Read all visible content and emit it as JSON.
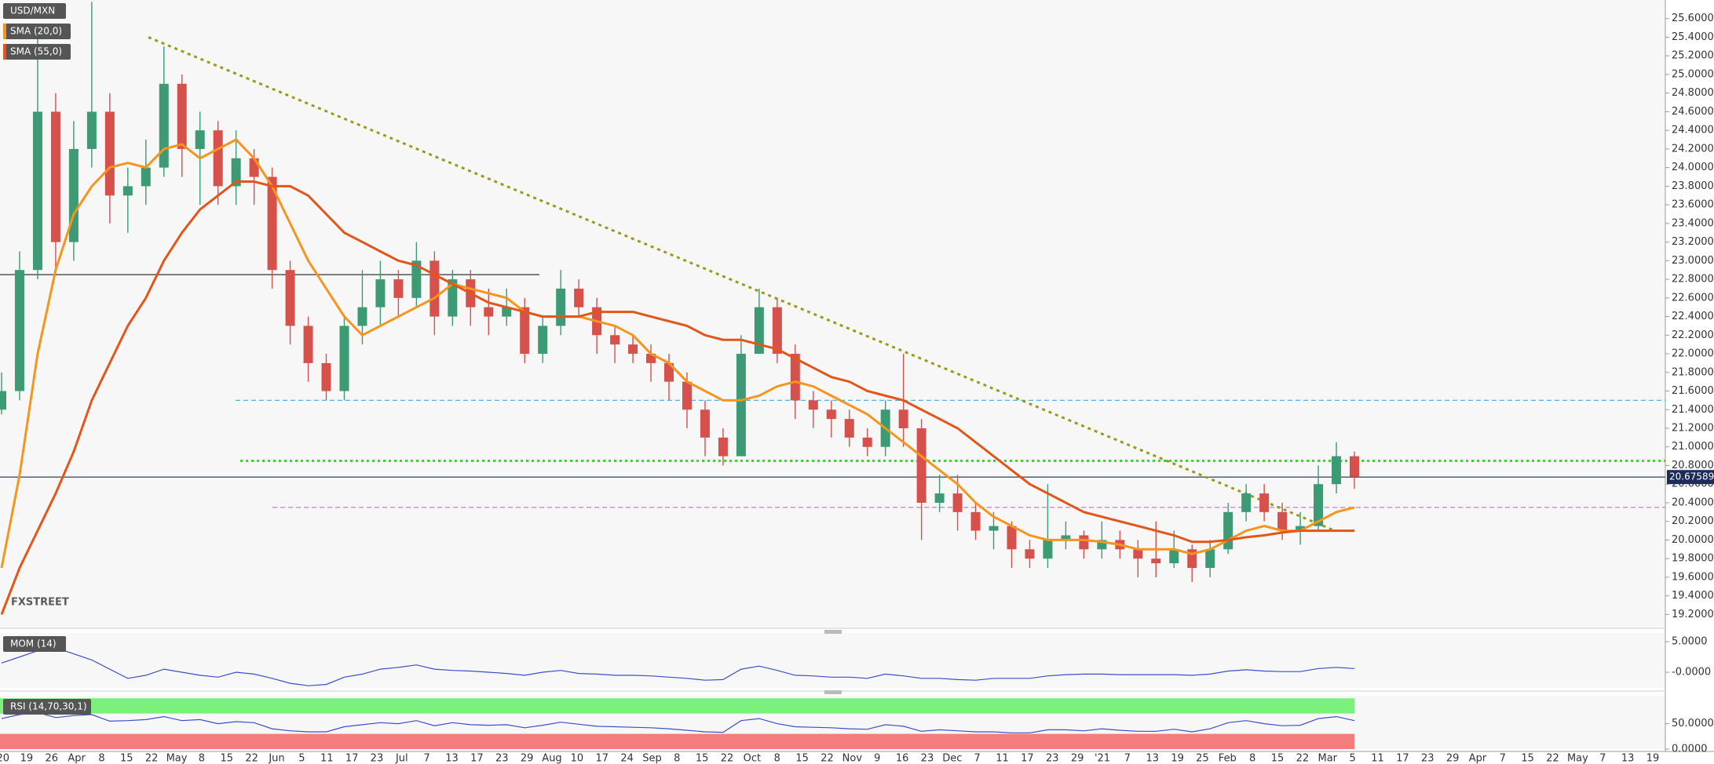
{
  "chart_data": [
    {
      "type": "candlestick",
      "title": "USD/MXN",
      "up_color": "#3c9a74",
      "down_color": "#d6504c",
      "open": [
        21.4,
        21.6,
        22.9,
        24.6,
        23.2,
        24.2,
        24.6,
        23.7,
        23.8,
        24.0,
        24.9,
        24.2,
        24.4,
        23.8,
        24.1,
        23.9,
        22.9,
        22.3,
        21.9,
        21.6,
        22.3,
        22.5,
        22.8,
        22.6,
        23.0,
        22.4,
        22.8,
        22.5,
        22.4,
        22.5,
        22.0,
        22.3,
        22.7,
        22.5,
        22.2,
        22.1,
        22.0,
        21.9,
        21.7,
        21.4,
        21.1,
        20.9,
        22.0,
        22.5,
        22.0,
        21.5,
        21.4,
        21.3,
        21.1,
        21.0,
        21.4,
        21.2,
        20.4,
        20.5,
        20.3,
        20.1,
        20.15,
        19.9,
        19.8,
        20.0,
        20.05,
        19.9,
        20.0,
        19.9,
        19.8,
        19.75,
        19.9,
        19.7,
        19.9,
        20.3,
        20.5,
        20.3,
        20.1,
        20.15,
        20.6,
        20.9
      ],
      "high": [
        21.8,
        23.1,
        25.5,
        24.8,
        24.5,
        25.78,
        24.8,
        24.0,
        24.3,
        25.3,
        25.0,
        24.6,
        24.5,
        24.4,
        24.2,
        24.0,
        23.0,
        22.4,
        22.0,
        22.4,
        22.9,
        23.0,
        22.9,
        23.2,
        23.1,
        22.9,
        22.9,
        22.7,
        22.7,
        22.6,
        22.4,
        22.9,
        22.8,
        22.6,
        22.3,
        22.2,
        22.1,
        22.0,
        21.8,
        21.5,
        21.2,
        22.2,
        22.7,
        22.6,
        22.1,
        21.6,
        21.5,
        21.4,
        21.2,
        21.5,
        22.0,
        21.3,
        20.7,
        20.7,
        20.4,
        20.3,
        20.2,
        20.0,
        20.6,
        20.2,
        20.1,
        20.2,
        20.1,
        20.0,
        20.2,
        20.1,
        19.95,
        20.0,
        20.4,
        20.6,
        20.6,
        20.4,
        20.3,
        20.8,
        21.05,
        20.95
      ],
      "low": [
        21.35,
        21.5,
        22.8,
        22.9,
        23.0,
        24.0,
        23.4,
        23.3,
        23.6,
        23.9,
        23.9,
        23.6,
        23.6,
        23.6,
        23.6,
        22.7,
        22.1,
        21.7,
        21.5,
        21.5,
        22.1,
        22.3,
        22.4,
        22.5,
        22.2,
        22.3,
        22.3,
        22.2,
        22.3,
        21.9,
        21.9,
        22.2,
        22.4,
        22.0,
        21.9,
        21.9,
        21.7,
        21.5,
        21.2,
        20.9,
        20.8,
        20.9,
        22.0,
        21.9,
        21.3,
        21.2,
        21.1,
        21.0,
        20.9,
        20.9,
        21.0,
        20.0,
        20.3,
        20.1,
        20.0,
        19.9,
        19.7,
        19.7,
        19.7,
        19.9,
        19.8,
        19.8,
        19.8,
        19.6,
        19.6,
        19.7,
        19.55,
        19.6,
        19.85,
        20.2,
        20.2,
        20.0,
        19.95,
        20.1,
        20.5,
        20.55
      ],
      "close": [
        21.6,
        22.9,
        24.6,
        23.2,
        24.2,
        24.6,
        23.7,
        23.8,
        24.0,
        24.9,
        24.2,
        24.4,
        23.8,
        24.1,
        23.9,
        22.9,
        22.3,
        21.9,
        21.6,
        22.3,
        22.5,
        22.8,
        22.6,
        23.0,
        22.4,
        22.8,
        22.5,
        22.4,
        22.5,
        22.0,
        22.3,
        22.7,
        22.5,
        22.2,
        22.1,
        22.0,
        21.9,
        21.7,
        21.4,
        21.1,
        20.9,
        22.0,
        22.5,
        22.0,
        21.5,
        21.4,
        21.3,
        21.1,
        21.0,
        21.4,
        21.2,
        20.4,
        20.5,
        20.3,
        20.1,
        20.15,
        19.9,
        19.8,
        20.0,
        20.05,
        19.9,
        20.0,
        19.9,
        19.8,
        19.75,
        19.9,
        19.7,
        19.9,
        20.3,
        20.5,
        20.3,
        20.1,
        20.15,
        20.6,
        20.9,
        20.68
      ],
      "series": [
        {
          "name": "SMA (20,0)",
          "color": "#f7941d",
          "values": [
            19.7,
            20.7,
            22.0,
            22.9,
            23.5,
            23.8,
            24.0,
            24.05,
            24.0,
            24.2,
            24.25,
            24.1,
            24.2,
            24.3,
            24.1,
            23.8,
            23.4,
            23.0,
            22.7,
            22.4,
            22.2,
            22.3,
            22.4,
            22.5,
            22.6,
            22.75,
            22.7,
            22.65,
            22.6,
            22.45,
            22.4,
            22.4,
            22.4,
            22.35,
            22.3,
            22.2,
            22.0,
            21.9,
            21.7,
            21.6,
            21.5,
            21.5,
            21.55,
            21.65,
            21.7,
            21.65,
            21.55,
            21.45,
            21.35,
            21.2,
            21.05,
            20.9,
            20.75,
            20.6,
            20.4,
            20.25,
            20.15,
            20.05,
            20.0,
            20.0,
            20.0,
            19.98,
            19.95,
            19.9,
            19.9,
            19.9,
            19.85,
            19.9,
            20.0,
            20.1,
            20.15,
            20.1,
            20.1,
            20.2,
            20.3,
            20.35
          ]
        },
        {
          "name": "SMA (55,0)",
          "color": "#e2561a",
          "values": [
            19.2,
            19.7,
            20.1,
            20.5,
            20.95,
            21.5,
            21.9,
            22.3,
            22.6,
            23.0,
            23.3,
            23.55,
            23.7,
            23.85,
            23.85,
            23.8,
            23.8,
            23.7,
            23.5,
            23.3,
            23.2,
            23.1,
            23.0,
            22.95,
            22.85,
            22.75,
            22.65,
            22.55,
            22.5,
            22.45,
            22.4,
            22.4,
            22.4,
            22.45,
            22.45,
            22.45,
            22.4,
            22.35,
            22.3,
            22.2,
            22.15,
            22.15,
            22.1,
            22.05,
            21.95,
            21.85,
            21.75,
            21.7,
            21.6,
            21.55,
            21.5,
            21.4,
            21.3,
            21.2,
            21.05,
            20.9,
            20.75,
            20.6,
            20.5,
            20.4,
            20.3,
            20.25,
            20.2,
            20.15,
            20.1,
            20.05,
            19.98,
            19.98,
            20.0,
            20.03,
            20.05,
            20.08,
            20.1,
            20.1,
            20.1,
            20.1
          ]
        }
      ],
      "trendline": {
        "values": [
          25.4,
          20.1
        ],
        "color": "#9a9a1a"
      },
      "levels": [
        {
          "value": 22.85,
          "color": "#333333",
          "style": "solid"
        },
        {
          "value": 21.5,
          "color": "#5aaee0",
          "style": "dashed"
        },
        {
          "value": 20.85,
          "color": "#33dd22",
          "style": "dotted"
        },
        {
          "value": 20.35,
          "color": "#e070d0",
          "style": "dashed"
        }
      ],
      "last": 20.67589,
      "last_color": "#1c2a5c",
      "watermark": "FXSTREET",
      "ylim": [
        19.06,
        25.8
      ],
      "yticks": [
        {
          "value": 19.2,
          "label": "19.2000"
        },
        {
          "value": 19.4,
          "label": "19.4000"
        },
        {
          "value": 19.6,
          "label": "19.6000"
        },
        {
          "value": 19.8,
          "label": "19.8000"
        },
        {
          "value": 20.0,
          "label": "20.0000"
        },
        {
          "value": 20.2,
          "label": "20.2000"
        },
        {
          "value": 20.4,
          "label": "20.4000"
        },
        {
          "value": 20.6,
          "label": "20.6000"
        },
        {
          "value": 20.8,
          "label": "20.8000"
        },
        {
          "value": 21.0,
          "label": "21.0000"
        },
        {
          "value": 21.2,
          "label": "21.2000"
        },
        {
          "value": 21.4,
          "label": "21.4000"
        },
        {
          "value": 21.6,
          "label": "21.6000"
        },
        {
          "value": 21.8,
          "label": "21.8000"
        },
        {
          "value": 22.0,
          "label": "22.0000"
        },
        {
          "value": 22.2,
          "label": "22.2000"
        },
        {
          "value": 22.4,
          "label": "22.4000"
        },
        {
          "value": 22.6,
          "label": "22.6000"
        },
        {
          "value": 22.8,
          "label": "22.8000"
        },
        {
          "value": 23.0,
          "label": "23.0000"
        },
        {
          "value": 23.2,
          "label": "23.2000"
        },
        {
          "value": 23.4,
          "label": "23.4000"
        },
        {
          "value": 23.6,
          "label": "23.6000"
        },
        {
          "value": 23.8,
          "label": "23.8000"
        },
        {
          "value": 24.0,
          "label": "24.0000"
        },
        {
          "value": 24.2,
          "label": "24.2000"
        },
        {
          "value": 24.4,
          "label": "24.4000"
        },
        {
          "value": 24.6,
          "label": "24.6000"
        },
        {
          "value": 24.8,
          "label": "24.8000"
        },
        {
          "value": 25.0,
          "label": "25.0000"
        },
        {
          "value": 25.2,
          "label": "25.2000"
        },
        {
          "value": 25.4,
          "label": "25.4000"
        },
        {
          "value": 25.6,
          "label": "25.6000"
        }
      ],
      "xtick_labels": [
        "'20",
        "19",
        "26",
        "Apr",
        "8",
        "15",
        "22",
        "May",
        "8",
        "15",
        "22",
        "Jun",
        "5",
        "11",
        "17",
        "23",
        "Jul",
        "7",
        "13",
        "17",
        "23",
        "29",
        "Aug",
        "10",
        "17",
        "24",
        "Sep",
        "8",
        "15",
        "22",
        "Oct",
        "8",
        "15",
        "22",
        "Nov",
        "9",
        "16",
        "23",
        "Dec",
        "7",
        "11",
        "17",
        "23",
        "29",
        "'21",
        "7",
        "13",
        "19",
        "25",
        "Feb",
        "8",
        "15",
        "22",
        "Mar",
        "5",
        "11",
        "17",
        "23",
        "29",
        "Apr",
        "7",
        "15",
        "22",
        "May",
        "7",
        "13",
        "19"
      ]
    },
    {
      "type": "line",
      "title": "MOM (14)",
      "color": "#3a4fc8",
      "values": [
        1.5,
        2.5,
        3.5,
        4.0,
        3.0,
        2.0,
        0.5,
        -1.0,
        -0.5,
        0.5,
        0.0,
        -0.5,
        -0.8,
        0.0,
        -0.3,
        -1.0,
        -1.8,
        -2.2,
        -2.0,
        -0.8,
        -0.3,
        0.5,
        0.8,
        1.2,
        0.5,
        0.3,
        0.2,
        0.0,
        -0.2,
        -0.5,
        0.0,
        0.3,
        -0.2,
        -0.3,
        -0.5,
        -0.5,
        -0.6,
        -0.8,
        -1.0,
        -1.3,
        -1.2,
        0.5,
        1.0,
        0.3,
        -0.5,
        -0.6,
        -0.8,
        -0.8,
        -1.0,
        -0.3,
        -0.6,
        -1.0,
        -1.0,
        -1.2,
        -1.3,
        -1.0,
        -1.0,
        -1.0,
        -0.6,
        -0.4,
        -0.3,
        -0.3,
        -0.4,
        -0.4,
        -0.4,
        -0.4,
        -0.5,
        -0.3,
        0.2,
        0.4,
        0.2,
        0.1,
        0.1,
        0.6,
        0.8,
        0.6
      ],
      "ylim": [
        -2.56,
        6.41
      ],
      "yticks": [
        {
          "value": 5,
          "label": "5.0000"
        },
        {
          "value": 0,
          "label": "-0.0000"
        }
      ]
    },
    {
      "type": "line",
      "title": "RSI (14,70,30,1)",
      "color": "#3a4fc8",
      "values": [
        60,
        68,
        72,
        62,
        66,
        68,
        55,
        56,
        58,
        64,
        56,
        58,
        50,
        54,
        52,
        40,
        36,
        34,
        34,
        44,
        48,
        52,
        50,
        56,
        46,
        52,
        48,
        47,
        48,
        42,
        47,
        53,
        49,
        45,
        44,
        43,
        42,
        40,
        37,
        34,
        33,
        56,
        60,
        50,
        44,
        43,
        42,
        40,
        39,
        48,
        45,
        35,
        38,
        36,
        34,
        34,
        32,
        32,
        38,
        38,
        36,
        40,
        37,
        35,
        35,
        39,
        34,
        40,
        52,
        56,
        50,
        46,
        47,
        60,
        64,
        56
      ],
      "bands": [
        {
          "from": 70,
          "to": 100,
          "color": "#7cf07c"
        },
        {
          "from": 0,
          "to": 30,
          "color": "#f47c7c"
        }
      ],
      "ylim": [
        0,
        105
      ],
      "yticks": [
        {
          "value": 50,
          "label": "50.0000"
        },
        {
          "value": 0,
          "label": "0.0000"
        }
      ]
    }
  ]
}
